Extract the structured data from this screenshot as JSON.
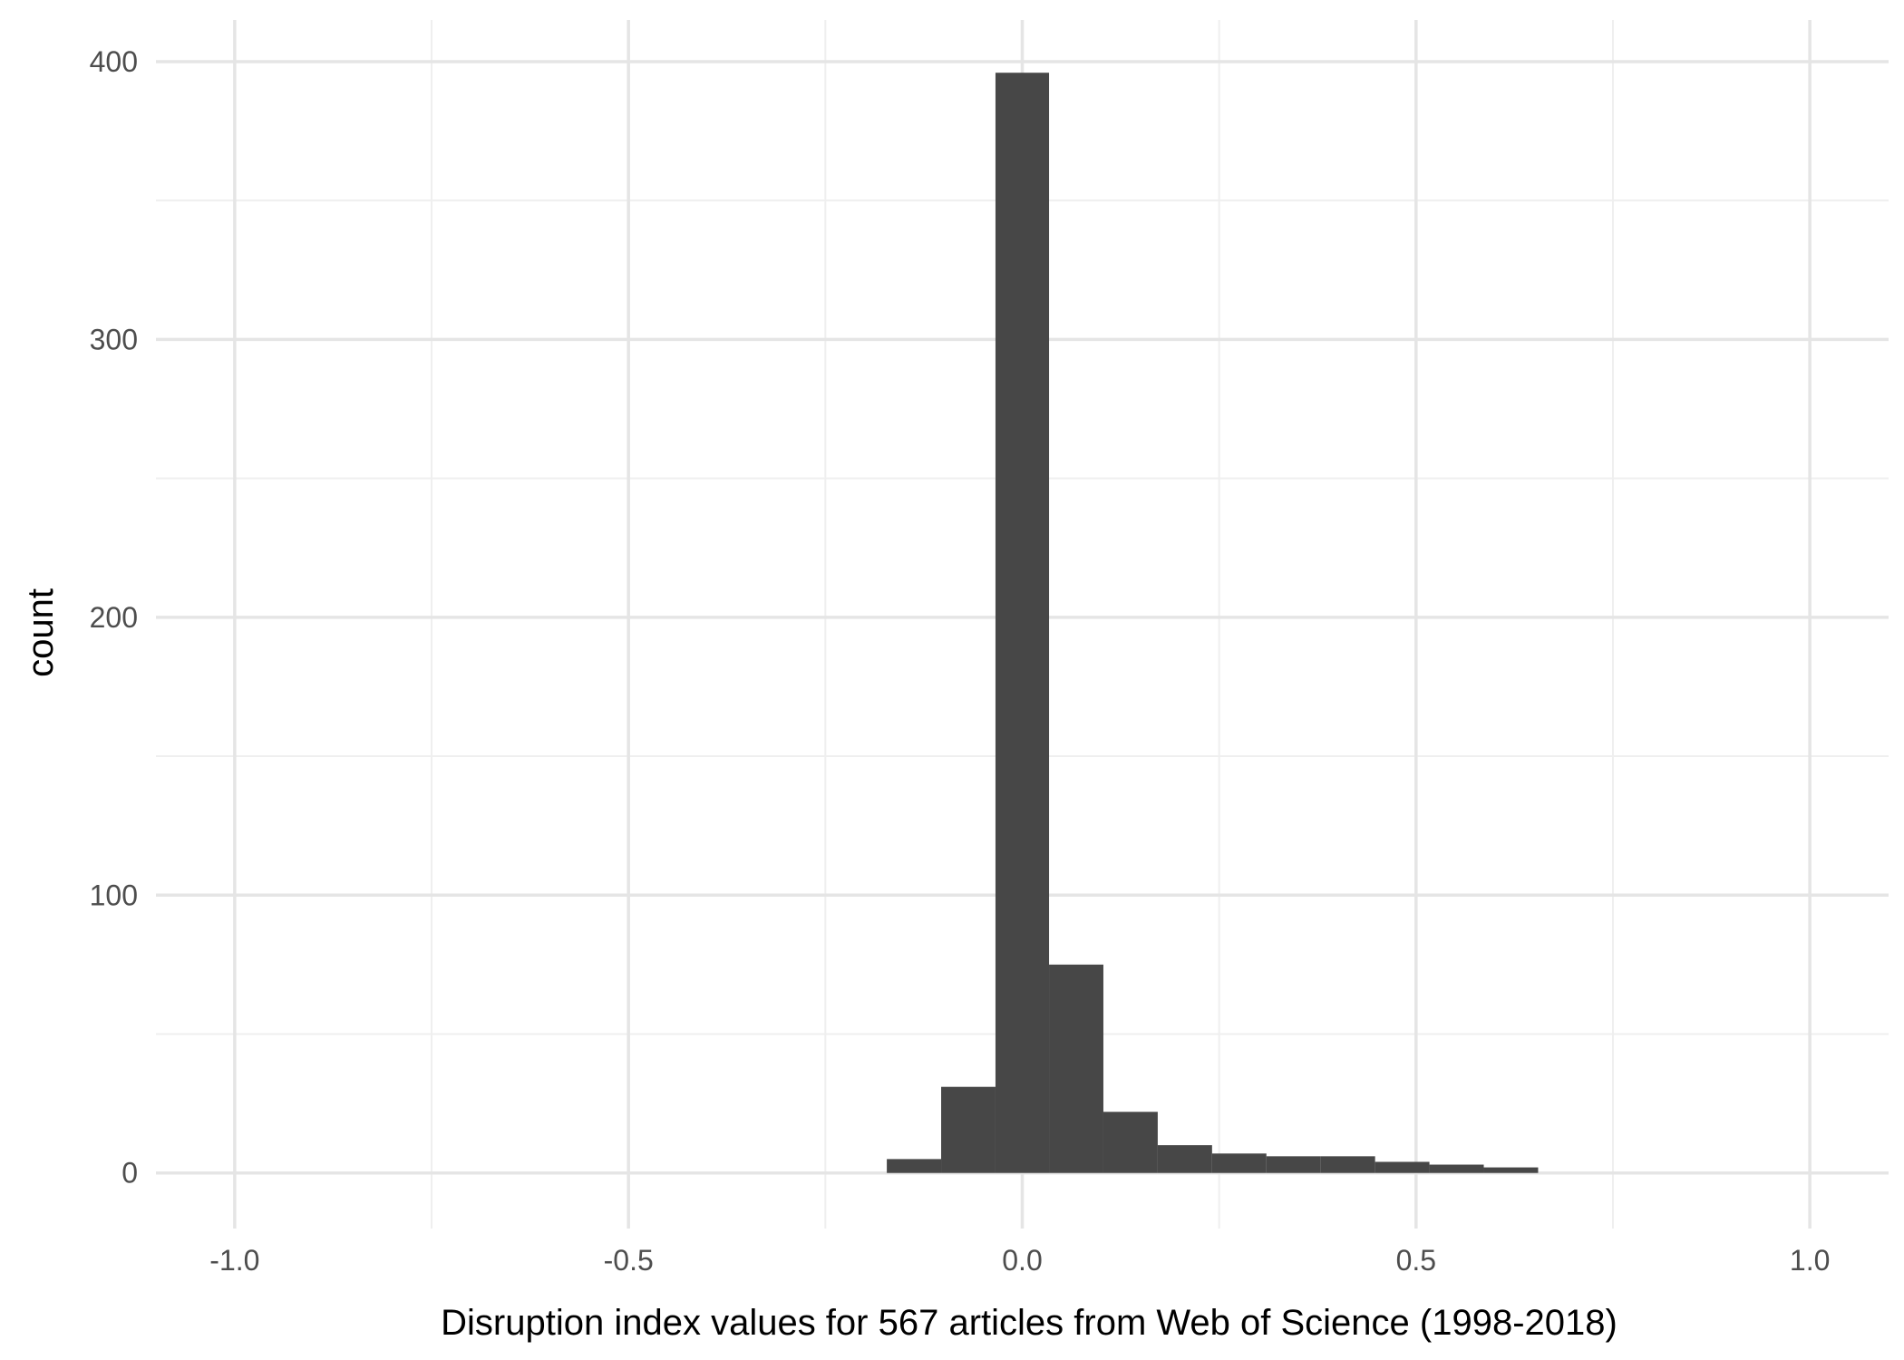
{
  "chart_data": {
    "type": "bar",
    "subtype": "histogram",
    "xlabel": "Disruption index values for 567 articles from Web of Science (1998-2018)",
    "ylabel": "count",
    "xlim": [
      -1.1,
      1.1
    ],
    "ylim": [
      -20,
      415
    ],
    "grid": true,
    "x_major_ticks": [
      -1.0,
      -0.5,
      0.0,
      0.5,
      1.0
    ],
    "x_major_tick_labels": [
      "-1.0",
      "-0.5",
      "0.0",
      "0.5",
      "1.0"
    ],
    "x_minor_ticks": [
      -0.75,
      -0.25,
      0.25,
      0.75
    ],
    "y_major_ticks": [
      0,
      100,
      200,
      300,
      400
    ],
    "y_major_tick_labels": [
      "0",
      "100",
      "200",
      "300",
      "400"
    ],
    "y_minor_ticks": [
      50,
      150,
      250,
      350
    ],
    "bin_width": 0.069,
    "bins": [
      {
        "x_start": -0.172,
        "x_end": -0.103,
        "count": 5
      },
      {
        "x_start": -0.103,
        "x_end": -0.034,
        "count": 31
      },
      {
        "x_start": -0.034,
        "x_end": 0.034,
        "count": 396
      },
      {
        "x_start": 0.034,
        "x_end": 0.103,
        "count": 75
      },
      {
        "x_start": 0.103,
        "x_end": 0.172,
        "count": 22
      },
      {
        "x_start": 0.172,
        "x_end": 0.241,
        "count": 10
      },
      {
        "x_start": 0.241,
        "x_end": 0.31,
        "count": 7
      },
      {
        "x_start": 0.31,
        "x_end": 0.379,
        "count": 6
      },
      {
        "x_start": 0.379,
        "x_end": 0.448,
        "count": 6
      },
      {
        "x_start": 0.448,
        "x_end": 0.517,
        "count": 4
      },
      {
        "x_start": 0.517,
        "x_end": 0.586,
        "count": 3
      },
      {
        "x_start": 0.586,
        "x_end": 0.655,
        "count": 2
      }
    ],
    "colors": {
      "bar": "#474747",
      "grid_major": "#e5e5e5",
      "grid_minor": "#efefef",
      "tick_text": "#4d4d4d",
      "title_text": "#000000",
      "background": "#ffffff"
    }
  }
}
